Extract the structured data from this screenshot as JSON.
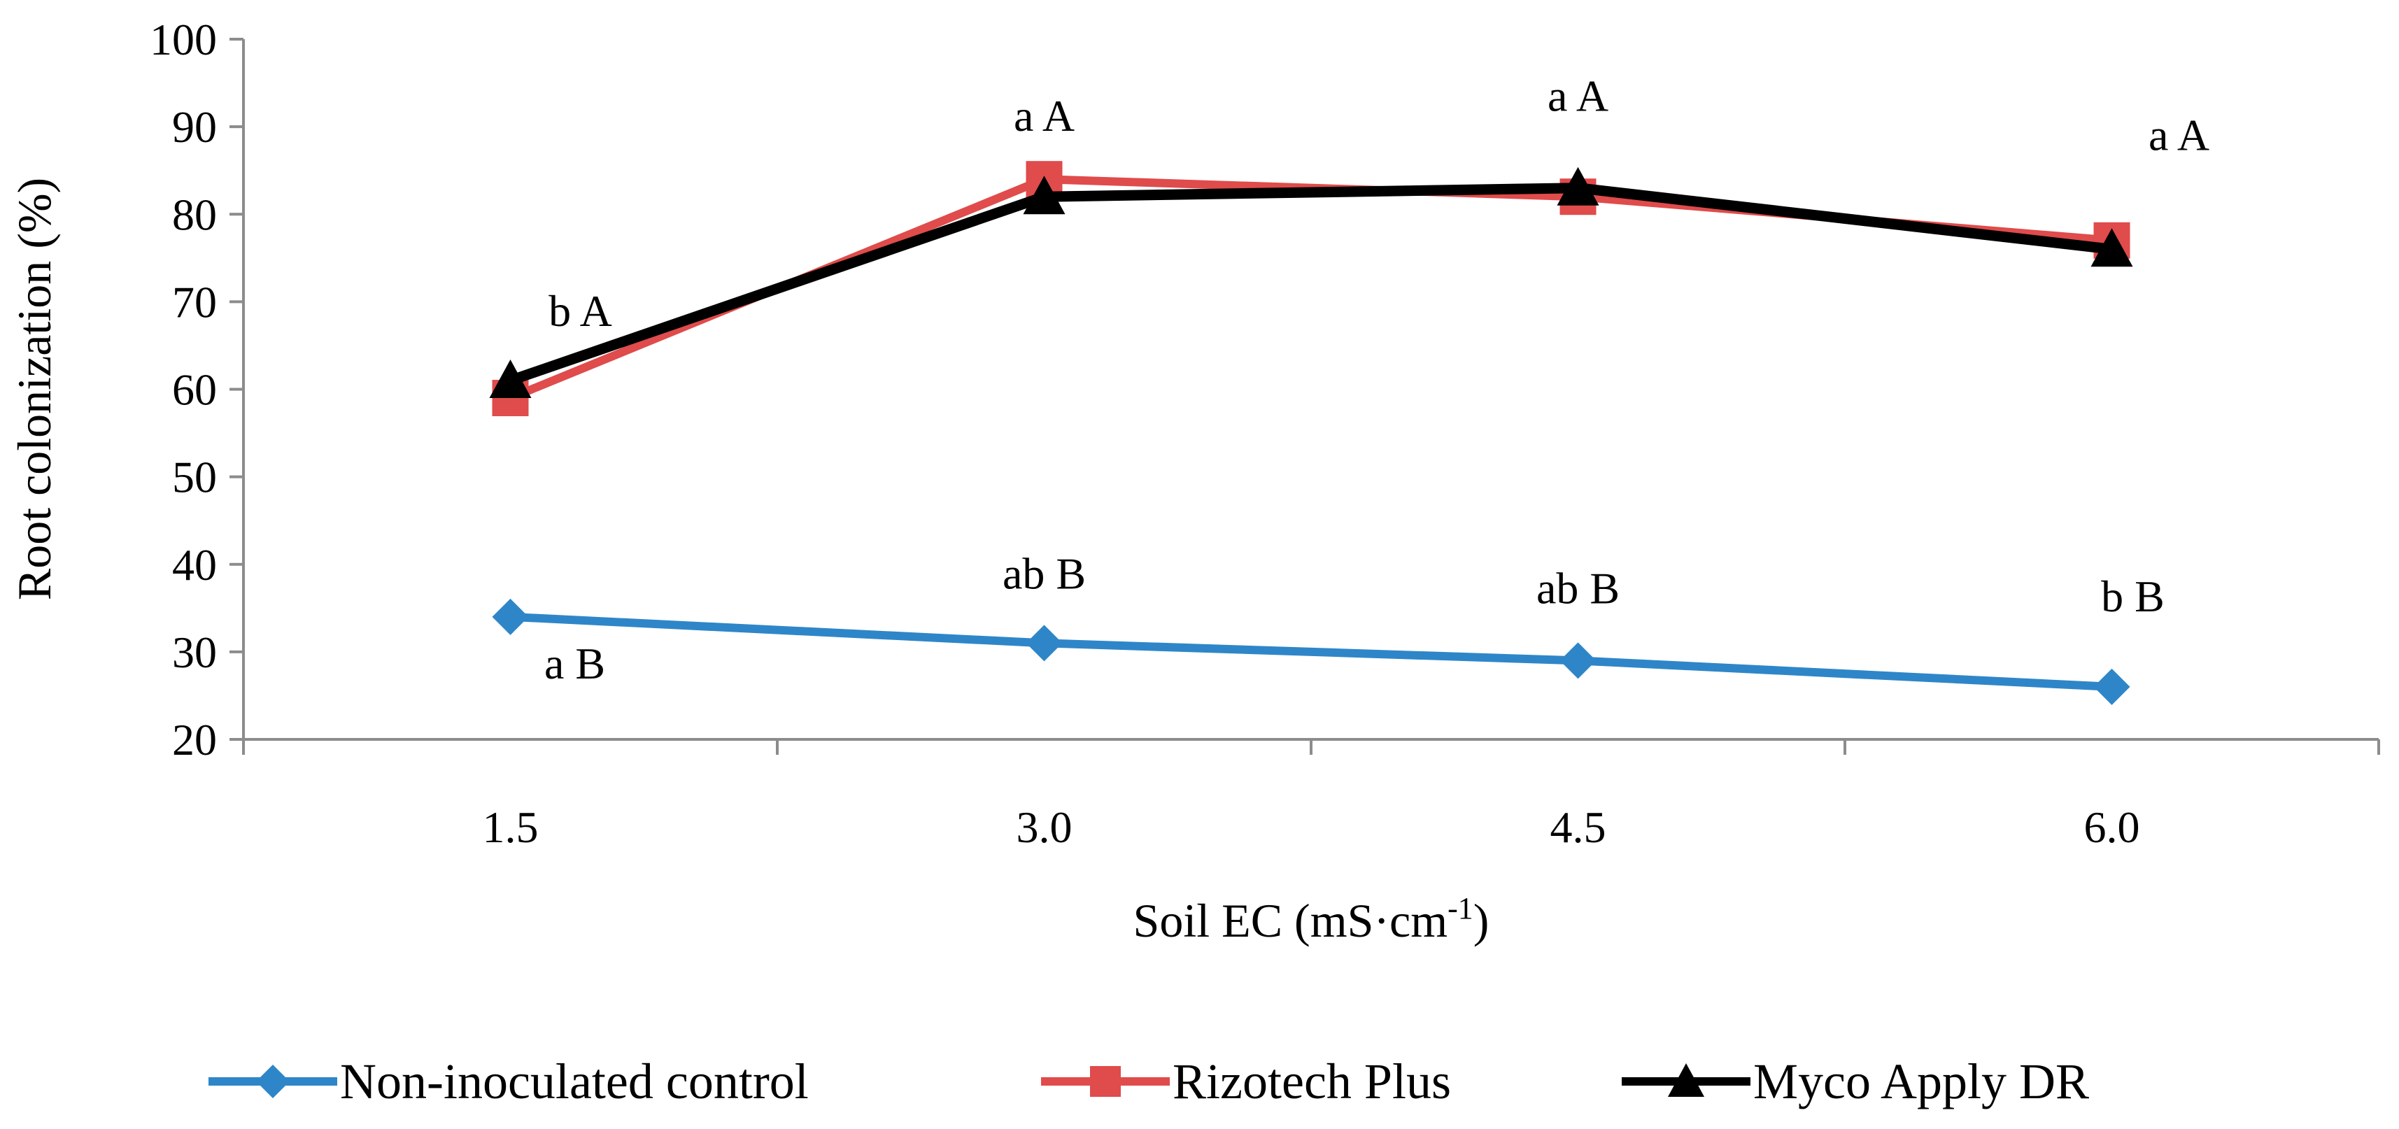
{
  "chart_data": {
    "type": "line",
    "title": "",
    "xlabel": "Soil EC (mS·cm",
    "xlabel_sup": "-1",
    "xlabel_close": ")",
    "ylabel": "Root colonization (%)",
    "ylim": [
      20,
      100
    ],
    "yticks": [
      20,
      30,
      40,
      50,
      60,
      70,
      80,
      90,
      100
    ],
    "categories": [
      "1.5",
      "3.0",
      "4.5",
      "6.0"
    ],
    "grid": false,
    "legend_position": "bottom",
    "series": [
      {
        "name": "Non-inoculated control",
        "color": "#2E86C8",
        "marker": "diamond",
        "values": [
          34,
          31,
          29,
          26
        ],
        "annotations": [
          "a B",
          "ab B",
          "ab B",
          "b B"
        ]
      },
      {
        "name": "Rizotech Plus",
        "color": "#E04B4B",
        "marker": "square",
        "values": [
          59,
          84,
          82,
          77
        ]
      },
      {
        "name": "Myco Apply DR",
        "color": "#000000",
        "marker": "triangle",
        "values": [
          61,
          82,
          83,
          76
        ],
        "annotations": [
          "b A",
          "a A",
          "a A",
          "a A"
        ]
      }
    ]
  }
}
